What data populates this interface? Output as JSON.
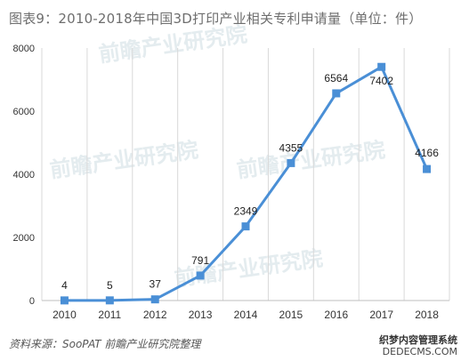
{
  "title": "图表9：2010-2018年中国3D打印产业相关专利申请量（单位：件）",
  "source": "资料来源：SooPAT 前瞻产业研究院整理",
  "watermark": "前瞻产业研究院",
  "stamp": {
    "line1": "织梦内容管理系统",
    "line2": "DEDECMS.COM"
  },
  "chart_data": {
    "type": "line",
    "x": [
      "2010",
      "2011",
      "2012",
      "2013",
      "2014",
      "2015",
      "2016",
      "2017",
      "2018"
    ],
    "series": [
      {
        "values": [
          4,
          5,
          37,
          791,
          2349,
          4355,
          6564,
          7402,
          4166
        ],
        "color": "#4a8fd6"
      }
    ],
    "yticks": [
      0,
      2000,
      4000,
      6000,
      8000
    ],
    "ylim": [
      0,
      8000
    ],
    "data_labels": [
      "4",
      "5",
      "37",
      "791",
      "2349",
      "4355",
      "6564",
      "7402",
      "4166"
    ],
    "grid": "vertical gridlines on",
    "legend": "none"
  }
}
